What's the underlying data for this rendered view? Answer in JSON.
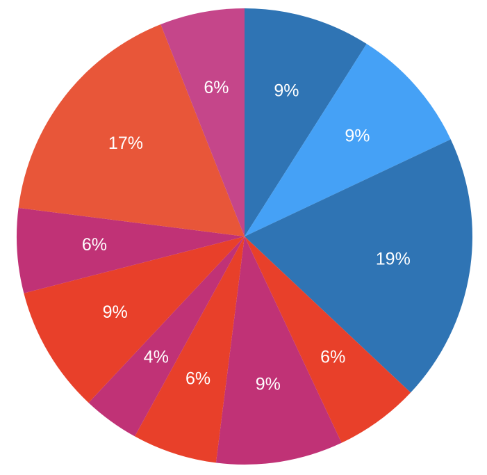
{
  "chart_data": {
    "type": "pie",
    "values": [
      9,
      9,
      19,
      6,
      9,
      6,
      4,
      9,
      6,
      17,
      6
    ],
    "value_labels": [
      "9%",
      "9%",
      "19%",
      "6%",
      "9%",
      "6%",
      "4%",
      "9%",
      "6%",
      "17%",
      "6%"
    ],
    "colors": [
      "#2f74b4",
      "#45a1f6",
      "#2f74b4",
      "#e8402a",
      "#c03276",
      "#e8402a",
      "#c03276",
      "#e8402a",
      "#c03276",
      "#e85639",
      "#c5468a"
    ],
    "start_angle": 0,
    "direction": "clockwise"
  }
}
